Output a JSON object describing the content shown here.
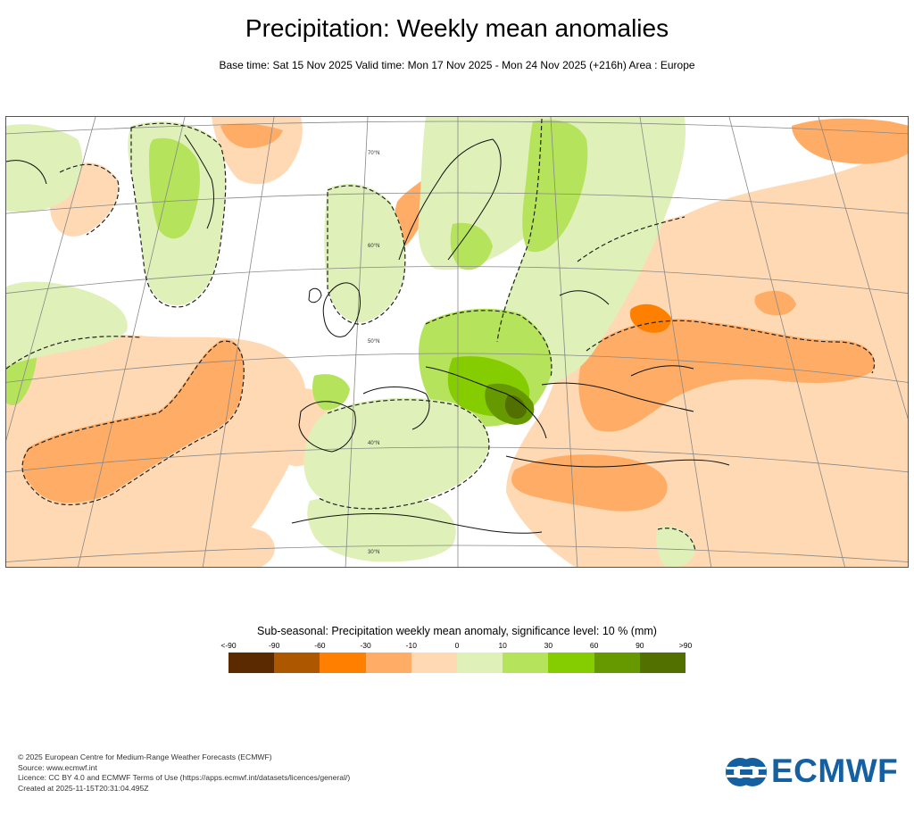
{
  "header": {
    "title": "Precipitation: Weekly mean anomalies",
    "subtitle": "Base time: Sat 15 Nov 2025 Valid time: Mon 17 Nov 2025 - Mon 24 Nov 2025 (+216h) Area : Europe"
  },
  "map": {
    "area": "Europe",
    "latitude_labels": [
      "70°N",
      "60°N",
      "50°N",
      "40°N",
      "30°N"
    ]
  },
  "legend": {
    "title": "Sub-seasonal: Precipitation weekly mean anomaly, significance level: 10 % (mm)",
    "ticks": [
      "<-90",
      "-90",
      "-60",
      "-30",
      "-10",
      "0",
      "10",
      "30",
      "60",
      "90",
      ">90"
    ],
    "colors": [
      "#5c2a00",
      "#ad5700",
      "#ff8000",
      "#ffad66",
      "#ffd9b3",
      "#dff0b8",
      "#b5e35c",
      "#85cc00",
      "#669900",
      "#527000"
    ]
  },
  "footer": {
    "copyright": "© 2025 European Centre for Medium-Range Weather Forecasts (ECMWF)",
    "source": "Source: www.ecmwf.int",
    "licence": "Licence: CC BY 4.0 and ECMWF Terms of Use (https://apps.ecmwf.int/datasets/licences/general/)",
    "created": "Created at 2025-11-15T20:31:04.495Z"
  },
  "logo": {
    "text": "ECMWF",
    "color": "#1560a0"
  }
}
